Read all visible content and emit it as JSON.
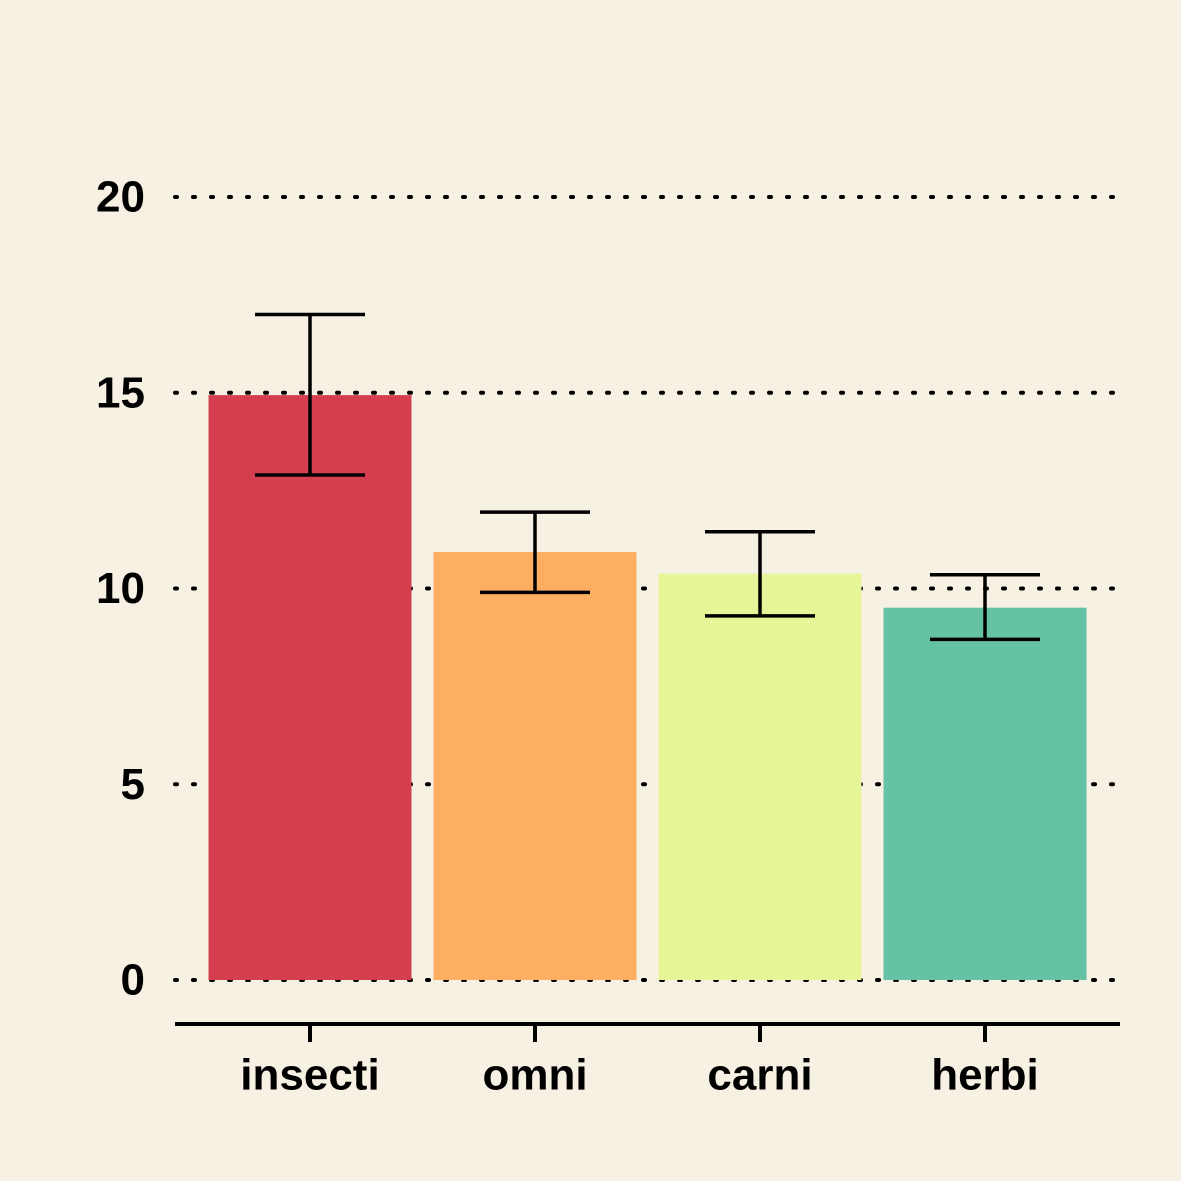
{
  "chart_data": {
    "type": "bar",
    "title": "",
    "xlabel": "",
    "ylabel": "",
    "categories": [
      "insecti",
      "omni",
      "carni",
      "herbi"
    ],
    "values": [
      14.94,
      10.93,
      10.38,
      9.51
    ],
    "error_low": [
      12.9,
      9.9,
      9.3,
      8.7
    ],
    "error_high": [
      17.0,
      11.95,
      11.45,
      10.35
    ],
    "colors": [
      "#d53e4f",
      "#fdae61",
      "#e6f598",
      "#66c2a5"
    ],
    "ylim": [
      0,
      20
    ],
    "yticks": [
      "0",
      "5",
      "10",
      "15",
      "20"
    ],
    "ytick_values": [
      0,
      5,
      10,
      15,
      20
    ],
    "grid": true,
    "grid_axis": "y",
    "grid_style": "dotted",
    "legend": "none",
    "background": "#f7f1e4"
  }
}
